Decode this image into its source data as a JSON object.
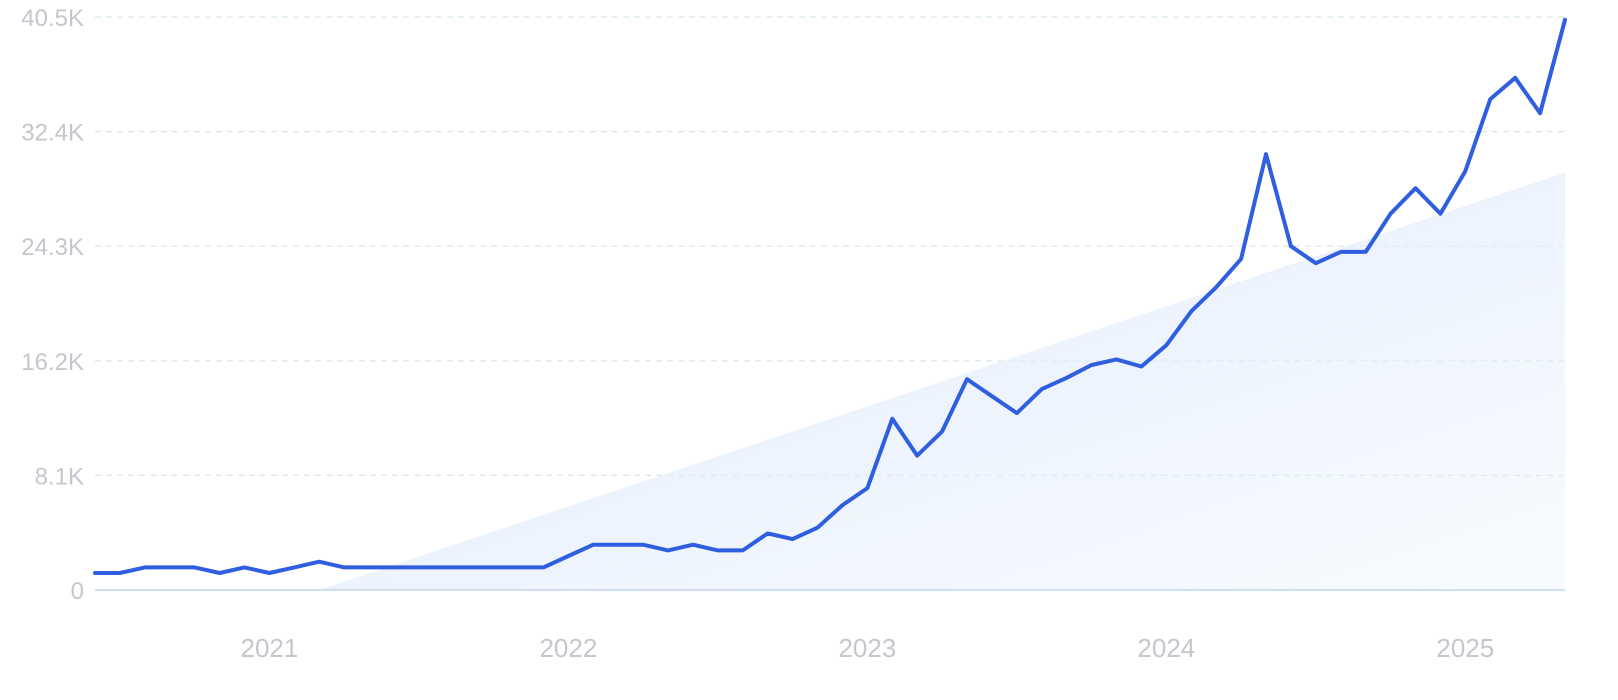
{
  "chart_data": {
    "type": "line",
    "title": "",
    "xlabel": "",
    "ylabel": "",
    "ylim": [
      0,
      40500
    ],
    "xlim": [
      "2020-06",
      "2025-05"
    ],
    "grid": true,
    "y_ticks": [
      {
        "value": 0,
        "label": "0"
      },
      {
        "value": 8100,
        "label": "8.1K"
      },
      {
        "value": 16200,
        "label": "16.2K"
      },
      {
        "value": 24300,
        "label": "24.3K"
      },
      {
        "value": 32400,
        "label": "32.4K"
      },
      {
        "value": 40500,
        "label": "40.5K"
      }
    ],
    "x_ticks": [
      {
        "value": "2021-01",
        "label": "2021"
      },
      {
        "value": "2022-01",
        "label": "2022"
      },
      {
        "value": "2023-01",
        "label": "2023"
      },
      {
        "value": "2024-01",
        "label": "2024"
      },
      {
        "value": "2025-01",
        "label": "2025"
      }
    ],
    "x": [
      "2020-06",
      "2020-07",
      "2020-08",
      "2020-09",
      "2020-10",
      "2020-11",
      "2020-12",
      "2021-01",
      "2021-02",
      "2021-03",
      "2021-04",
      "2021-05",
      "2021-06",
      "2021-07",
      "2021-08",
      "2021-09",
      "2021-10",
      "2021-11",
      "2021-12",
      "2022-01",
      "2022-02",
      "2022-03",
      "2022-04",
      "2022-05",
      "2022-06",
      "2022-07",
      "2022-08",
      "2022-09",
      "2022-10",
      "2022-11",
      "2022-12",
      "2023-01",
      "2023-02",
      "2023-03",
      "2023-04",
      "2023-05",
      "2023-06",
      "2023-07",
      "2023-08",
      "2023-09",
      "2023-10",
      "2023-11",
      "2023-12",
      "2024-01",
      "2024-02",
      "2024-03",
      "2024-04",
      "2024-05",
      "2024-06",
      "2024-07",
      "2024-08",
      "2024-09",
      "2024-10",
      "2024-11",
      "2024-12",
      "2025-01",
      "2025-02",
      "2025-03",
      "2025-04",
      "2025-05"
    ],
    "series": [
      {
        "values": [
          1200,
          1200,
          1600,
          1600,
          1600,
          1200,
          1600,
          1200,
          1600,
          2000,
          1600,
          1600,
          1600,
          1600,
          1600,
          1600,
          1600,
          1600,
          1600,
          2400,
          3200,
          3200,
          3200,
          2800,
          3200,
          2800,
          2800,
          4000,
          3600,
          4400,
          6000,
          7200,
          12100,
          9500,
          11200,
          14900,
          13700,
          12500,
          14200,
          15000,
          15900,
          16300,
          15800,
          17300,
          19700,
          21400,
          23400,
          30800,
          24300,
          23100,
          23900,
          23900,
          26600,
          28400,
          26600,
          29600,
          34700,
          36200,
          33700,
          40300
        ],
        "color": "#2f5fe0"
      }
    ],
    "trend": {
      "from": {
        "x": "2021-03",
        "y": 0
      },
      "to": {
        "x": "2025-05",
        "y": 29500
      },
      "color": "#dbe8fb"
    }
  }
}
